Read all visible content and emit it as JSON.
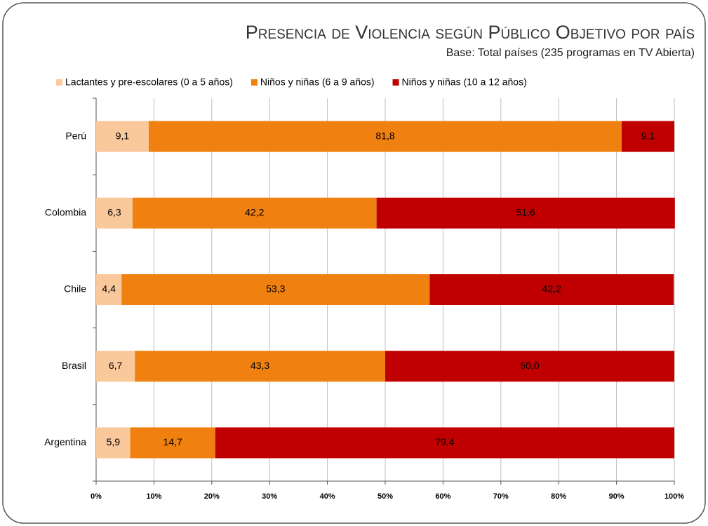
{
  "chart_data": {
    "type": "stacked_barh",
    "title": "Presencia de Violencia según Público Objetivo por país",
    "subtitle": "Base: Total países (235 programas en TV Abierta)",
    "categories": [
      "Perú",
      "Colombia",
      "Chile",
      "Brasil",
      "Argentina"
    ],
    "series": [
      {
        "name": "Lactantes y pre-escolares (0 a 5 años)",
        "color": "#f9c89b",
        "values": [
          9.1,
          6.3,
          4.4,
          6.7,
          5.9
        ],
        "value_labels": [
          "9,1",
          "6,3",
          "4,4",
          "6,7",
          "5,9"
        ]
      },
      {
        "name": "Niños y niñas (6 a 9 años)",
        "color": "#f0800f",
        "values": [
          81.8,
          42.2,
          53.3,
          43.3,
          14.7
        ],
        "value_labels": [
          "81,8",
          "42,2",
          "53,3",
          "43,3",
          "14,7"
        ]
      },
      {
        "name": "Niños y niñas (10 a 12 años)",
        "color": "#c00000",
        "values": [
          9.1,
          51.6,
          42.2,
          50.0,
          79.4
        ],
        "value_labels": [
          "9,1",
          "51,6",
          "42,2",
          "50,0",
          "79,4"
        ]
      }
    ],
    "xlim": [
      0,
      100
    ],
    "xticks": [
      {
        "value": 0,
        "label": "0%"
      },
      {
        "value": 10,
        "label": "10%"
      },
      {
        "value": 20,
        "label": "20%"
      },
      {
        "value": 30,
        "label": "30%"
      },
      {
        "value": 40,
        "label": "40%"
      },
      {
        "value": 50,
        "label": "50%"
      },
      {
        "value": 60,
        "label": "60%"
      },
      {
        "value": 70,
        "label": "70%"
      },
      {
        "value": 80,
        "label": "80%"
      },
      {
        "value": 90,
        "label": "90%"
      },
      {
        "value": 100,
        "label": "100%"
      }
    ],
    "grid": true,
    "legend": "top"
  }
}
